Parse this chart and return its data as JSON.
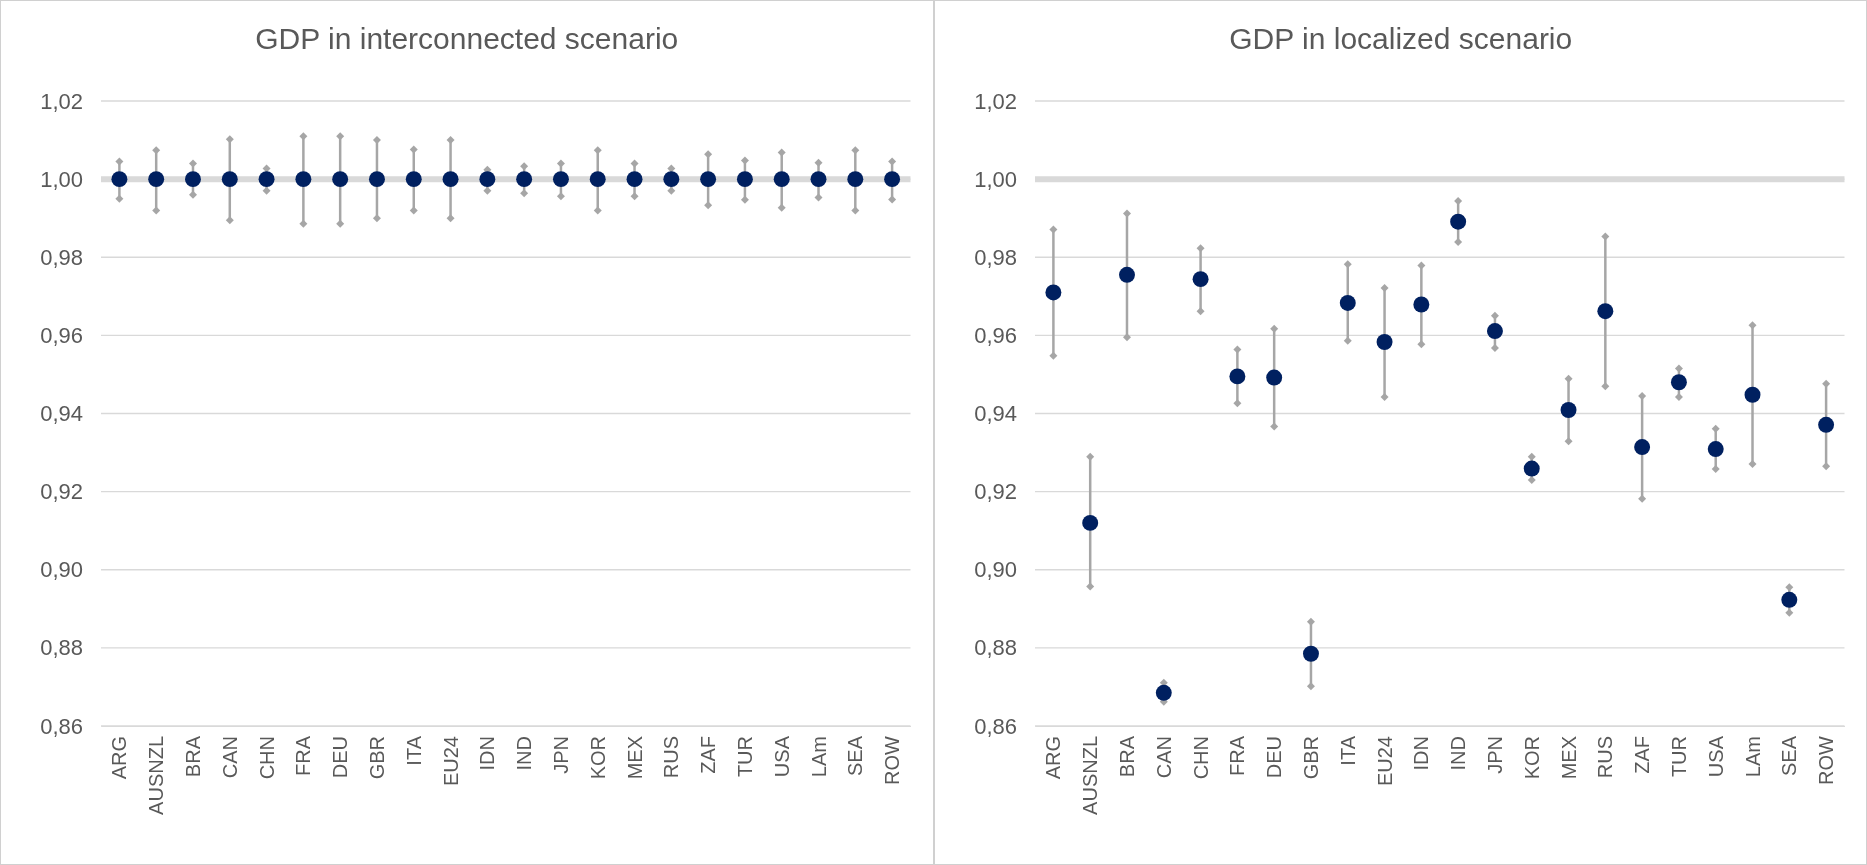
{
  "chart_data": [
    {
      "type": "scatter",
      "title": "GDP in interconnected scenario",
      "categories": [
        "ARG",
        "AUSNZL",
        "BRA",
        "CAN",
        "CHN",
        "FRA",
        "DEU",
        "GBR",
        "ITA",
        "EU24",
        "IDN",
        "IND",
        "JPN",
        "KOR",
        "MEX",
        "RUS",
        "ZAF",
        "TUR",
        "USA",
        "LAm",
        "SEA",
        "ROW"
      ],
      "series": [
        {
          "color": "#002060",
          "values": [
            1,
            1,
            1,
            1,
            1,
            1,
            1,
            1,
            1,
            1,
            1,
            1,
            1,
            1,
            1,
            1,
            1,
            1,
            1,
            1,
            1,
            1
          ],
          "errors": [
            [
              0.995,
              1.0045
            ],
            [
              0.992,
              1.0074
            ],
            [
              0.996,
              1.004
            ],
            [
              0.9895,
              1.0102
            ],
            [
              0.997,
              1.0027
            ],
            [
              0.9886,
              1.011
            ],
            [
              0.9886,
              1.011
            ],
            [
              0.99,
              1.01
            ],
            [
              0.992,
              1.0076
            ],
            [
              0.99,
              1.01
            ],
            [
              0.997,
              1.0024
            ],
            [
              0.9964,
              1.0033
            ],
            [
              0.9956,
              1.004
            ],
            [
              0.992,
              1.0074
            ],
            [
              0.9956,
              1.004
            ],
            [
              0.997,
              1.0027
            ],
            [
              0.9933,
              1.0064
            ],
            [
              0.9947,
              1.0048
            ],
            [
              0.9927,
              1.0068
            ],
            [
              0.9953,
              1.0042
            ],
            [
              0.992,
              1.0074
            ],
            [
              0.9948,
              1.0045
            ]
          ]
        }
      ],
      "ylim": [
        0.86,
        1.02
      ],
      "yticks": [
        {
          "value": 0.86,
          "label": "0,86"
        },
        {
          "value": 0.88,
          "label": "0,88"
        },
        {
          "value": 0.9,
          "label": "0,90"
        },
        {
          "value": 0.92,
          "label": "0,92"
        },
        {
          "value": 0.94,
          "label": "0,94"
        },
        {
          "value": 0.96,
          "label": "0,96"
        },
        {
          "value": 0.98,
          "label": "0,98"
        },
        {
          "value": 1,
          "label": "1,00"
        },
        {
          "value": 1.02,
          "label": "1,02"
        }
      ],
      "ref_lines": [
        {
          "axis": "y",
          "value": 1,
          "color": "#d9d9d9"
        }
      ],
      "grid": "y",
      "marker": "circle"
    },
    {
      "type": "scatter",
      "title": "GDP in localized scenario",
      "categories": [
        "ARG",
        "AUSNZL",
        "BRA",
        "CAN",
        "CHN",
        "FRA",
        "DEU",
        "GBR",
        "ITA",
        "EU24",
        "IDN",
        "IND",
        "JPN",
        "KOR",
        "MEX",
        "RUS",
        "ZAF",
        "TUR",
        "USA",
        "LAm",
        "SEA",
        "ROW"
      ],
      "series": [
        {
          "color": "#002060",
          "values": [
            0.971,
            0.912,
            0.9755,
            0.8685,
            0.9744,
            0.9495,
            0.9492,
            0.8785,
            0.9683,
            0.9583,
            0.9679,
            0.9891,
            0.9611,
            0.9259,
            0.9409,
            0.9662,
            0.9314,
            0.948,
            0.9309,
            0.9448,
            0.8923,
            0.9371
          ],
          "errors": [
            [
              0.9548,
              0.9871
            ],
            [
              0.8957,
              0.9289
            ],
            [
              0.9595,
              0.9912
            ],
            [
              0.8662,
              0.8711
            ],
            [
              0.9662,
              0.9823
            ],
            [
              0.9426,
              0.9564
            ],
            [
              0.9367,
              0.9617
            ],
            [
              0.8702,
              0.8867
            ],
            [
              0.9586,
              0.9782
            ],
            [
              0.9442,
              0.9721
            ],
            [
              0.9577,
              0.9779
            ],
            [
              0.9839,
              0.9944
            ],
            [
              0.9568,
              0.965
            ],
            [
              0.923,
              0.9289
            ],
            [
              0.9329,
              0.9489
            ],
            [
              0.947,
              0.9853
            ],
            [
              0.9182,
              0.9445
            ],
            [
              0.9442,
              0.9515
            ],
            [
              0.9258,
              0.9361
            ],
            [
              0.9271,
              0.9626
            ],
            [
              0.889,
              0.8955
            ],
            [
              0.9265,
              0.9476
            ]
          ]
        }
      ],
      "ylim": [
        0.86,
        1.02
      ],
      "yticks": [
        {
          "value": 0.86,
          "label": "0,86"
        },
        {
          "value": 0.88,
          "label": "0,88"
        },
        {
          "value": 0.9,
          "label": "0,90"
        },
        {
          "value": 0.92,
          "label": "0,92"
        },
        {
          "value": 0.94,
          "label": "0,94"
        },
        {
          "value": 0.96,
          "label": "0,96"
        },
        {
          "value": 0.98,
          "label": "0,98"
        },
        {
          "value": 1,
          "label": "1,00"
        },
        {
          "value": 1.02,
          "label": "1,02"
        }
      ],
      "ref_lines": [
        {
          "axis": "y",
          "value": 1,
          "color": "#d9d9d9"
        }
      ],
      "grid": "y",
      "marker": "circle"
    }
  ]
}
